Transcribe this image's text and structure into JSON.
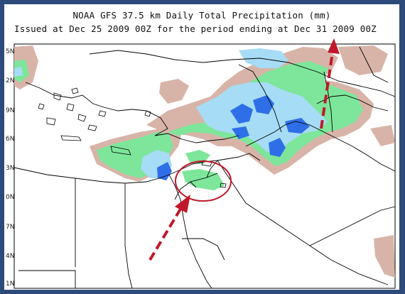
{
  "header": {
    "title": "NOAA GFS 37.5 km Daily Total Precipitation (mm)",
    "subtitle": "Issued at Dec 25 2009 00Z for the period ending at Dec 31 2009 00Z"
  },
  "map": {
    "lat_labels": [
      "5N",
      "2N",
      "9N",
      "6N",
      "3N",
      "0N",
      "7N",
      "4N",
      "1N"
    ],
    "colors": {
      "light_precip": "#d8b4a8",
      "medium_precip": "#7de69a",
      "heavy_precip": "#a6dcf5",
      "very_heavy_precip": "#2e6fe8",
      "annotation_red": "#c0182a",
      "frame_blue": "#2d4a7a"
    },
    "annotations": [
      "red dashed arrow toward highlighted region",
      "red ellipse marking region",
      "red dashed arrow to top right"
    ]
  }
}
